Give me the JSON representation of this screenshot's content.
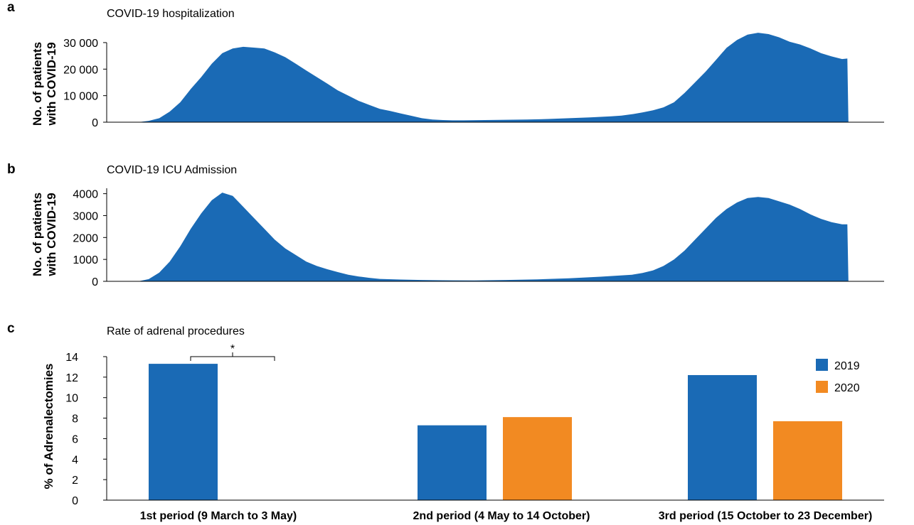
{
  "chart_data": [
    {
      "panel": "a",
      "type": "area",
      "title": "COVID-19 hospitalization",
      "ylabel_line1": "No. of patients",
      "ylabel_line2": "with COVID-19",
      "yticks": [
        "0",
        "10 000",
        "20 000",
        "30 000"
      ],
      "ytick_values": [
        0,
        10000,
        20000,
        30000
      ],
      "ylim": [
        0,
        34000
      ],
      "color": "#1a6ab5",
      "series": [
        {
          "x": 0,
          "y": 0
        },
        {
          "x": 3,
          "y": 0
        },
        {
          "x": 4,
          "y": 500
        },
        {
          "x": 5,
          "y": 1500
        },
        {
          "x": 6,
          "y": 4000
        },
        {
          "x": 7,
          "y": 7500
        },
        {
          "x": 8,
          "y": 12500
        },
        {
          "x": 9,
          "y": 17000
        },
        {
          "x": 10,
          "y": 22000
        },
        {
          "x": 11,
          "y": 26000
        },
        {
          "x": 12,
          "y": 27800
        },
        {
          "x": 13,
          "y": 28400
        },
        {
          "x": 14,
          "y": 28100
        },
        {
          "x": 15,
          "y": 27800
        },
        {
          "x": 16,
          "y": 26300
        },
        {
          "x": 17,
          "y": 24500
        },
        {
          "x": 18,
          "y": 22000
        },
        {
          "x": 19,
          "y": 19500
        },
        {
          "x": 20,
          "y": 17000
        },
        {
          "x": 21,
          "y": 14500
        },
        {
          "x": 22,
          "y": 12000
        },
        {
          "x": 23,
          "y": 10000
        },
        {
          "x": 24,
          "y": 8000
        },
        {
          "x": 25,
          "y": 6500
        },
        {
          "x": 26,
          "y": 5000
        },
        {
          "x": 27,
          "y": 4200
        },
        {
          "x": 28,
          "y": 3300
        },
        {
          "x": 29,
          "y": 2400
        },
        {
          "x": 30,
          "y": 1500
        },
        {
          "x": 31,
          "y": 1000
        },
        {
          "x": 32,
          "y": 800
        },
        {
          "x": 33,
          "y": 700
        },
        {
          "x": 34,
          "y": 700
        },
        {
          "x": 36,
          "y": 800
        },
        {
          "x": 38,
          "y": 900
        },
        {
          "x": 40,
          "y": 1000
        },
        {
          "x": 42,
          "y": 1200
        },
        {
          "x": 44,
          "y": 1500
        },
        {
          "x": 46,
          "y": 1800
        },
        {
          "x": 48,
          "y": 2200
        },
        {
          "x": 49,
          "y": 2500
        },
        {
          "x": 50,
          "y": 3000
        },
        {
          "x": 51,
          "y": 3700
        },
        {
          "x": 52,
          "y": 4500
        },
        {
          "x": 53,
          "y": 5600
        },
        {
          "x": 54,
          "y": 7500
        },
        {
          "x": 55,
          "y": 11000
        },
        {
          "x": 56,
          "y": 15000
        },
        {
          "x": 57,
          "y": 19000
        },
        {
          "x": 58,
          "y": 23500
        },
        {
          "x": 59,
          "y": 28000
        },
        {
          "x": 60,
          "y": 31000
        },
        {
          "x": 61,
          "y": 33000
        },
        {
          "x": 62,
          "y": 33700
        },
        {
          "x": 63,
          "y": 33200
        },
        {
          "x": 64,
          "y": 32000
        },
        {
          "x": 65,
          "y": 30300
        },
        {
          "x": 66,
          "y": 29300
        },
        {
          "x": 67,
          "y": 27800
        },
        {
          "x": 68,
          "y": 26000
        },
        {
          "x": 69,
          "y": 24800
        },
        {
          "x": 70,
          "y": 23800
        },
        {
          "x": 70.5,
          "y": 24000
        },
        {
          "x": 70.6,
          "y": 0
        }
      ]
    },
    {
      "panel": "b",
      "type": "area",
      "title": "COVID-19 ICU Admission",
      "ylabel_line1": "No. of patients",
      "ylabel_line2": "with COVID-19",
      "yticks": [
        "0",
        "1000",
        "2000",
        "3000",
        "4000"
      ],
      "ytick_values": [
        0,
        1000,
        2000,
        3000,
        4000
      ],
      "ylim": [
        0,
        4150
      ],
      "color": "#1a6ab5",
      "series": [
        {
          "x": 0,
          "y": 0
        },
        {
          "x": 3,
          "y": 0
        },
        {
          "x": 4,
          "y": 100
        },
        {
          "x": 5,
          "y": 400
        },
        {
          "x": 6,
          "y": 900
        },
        {
          "x": 7,
          "y": 1600
        },
        {
          "x": 8,
          "y": 2400
        },
        {
          "x": 9,
          "y": 3100
        },
        {
          "x": 10,
          "y": 3700
        },
        {
          "x": 11,
          "y": 4050
        },
        {
          "x": 12,
          "y": 3900
        },
        {
          "x": 13,
          "y": 3400
        },
        {
          "x": 14,
          "y": 2900
        },
        {
          "x": 15,
          "y": 2400
        },
        {
          "x": 16,
          "y": 1900
        },
        {
          "x": 17,
          "y": 1500
        },
        {
          "x": 18,
          "y": 1200
        },
        {
          "x": 19,
          "y": 900
        },
        {
          "x": 20,
          "y": 700
        },
        {
          "x": 21,
          "y": 550
        },
        {
          "x": 22,
          "y": 420
        },
        {
          "x": 23,
          "y": 300
        },
        {
          "x": 24,
          "y": 220
        },
        {
          "x": 25,
          "y": 160
        },
        {
          "x": 26,
          "y": 110
        },
        {
          "x": 28,
          "y": 80
        },
        {
          "x": 30,
          "y": 60
        },
        {
          "x": 32,
          "y": 50
        },
        {
          "x": 35,
          "y": 40
        },
        {
          "x": 38,
          "y": 60
        },
        {
          "x": 41,
          "y": 90
        },
        {
          "x": 44,
          "y": 140
        },
        {
          "x": 47,
          "y": 210
        },
        {
          "x": 50,
          "y": 300
        },
        {
          "x": 51,
          "y": 380
        },
        {
          "x": 52,
          "y": 500
        },
        {
          "x": 53,
          "y": 700
        },
        {
          "x": 54,
          "y": 1000
        },
        {
          "x": 55,
          "y": 1400
        },
        {
          "x": 56,
          "y": 1900
        },
        {
          "x": 57,
          "y": 2400
        },
        {
          "x": 58,
          "y": 2900
        },
        {
          "x": 59,
          "y": 3300
        },
        {
          "x": 60,
          "y": 3600
        },
        {
          "x": 61,
          "y": 3800
        },
        {
          "x": 62,
          "y": 3850
        },
        {
          "x": 63,
          "y": 3800
        },
        {
          "x": 64,
          "y": 3650
        },
        {
          "x": 65,
          "y": 3500
        },
        {
          "x": 66,
          "y": 3300
        },
        {
          "x": 67,
          "y": 3050
        },
        {
          "x": 68,
          "y": 2850
        },
        {
          "x": 69,
          "y": 2700
        },
        {
          "x": 70,
          "y": 2600
        },
        {
          "x": 70.5,
          "y": 2600
        },
        {
          "x": 70.6,
          "y": 0
        }
      ]
    },
    {
      "panel": "c",
      "type": "bar",
      "title": "Rate of adrenal procedures",
      "ylabel": "% of Adrenalectomies",
      "yticks": [
        "0",
        "2",
        "4",
        "6",
        "8",
        "10",
        "12",
        "14"
      ],
      "ytick_values": [
        0,
        2,
        4,
        6,
        8,
        10,
        12,
        14
      ],
      "ylim": [
        0,
        14
      ],
      "categories": [
        "1st period (9 March to 3 May)",
        "2nd period (4 May to 14 October)",
        "3rd period (15 October to 23 December)"
      ],
      "series": [
        {
          "name": "2019",
          "color": "#1a6ab5",
          "values": [
            13.3,
            7.3,
            12.2
          ]
        },
        {
          "name": "2020",
          "color": "#f28a22",
          "values": [
            0,
            8.1,
            7.7
          ]
        }
      ],
      "annotation": "*",
      "legend_position": "top-right"
    }
  ],
  "panels": {
    "a": {
      "letter": "a"
    },
    "b": {
      "letter": "b"
    },
    "c": {
      "letter": "c"
    }
  }
}
